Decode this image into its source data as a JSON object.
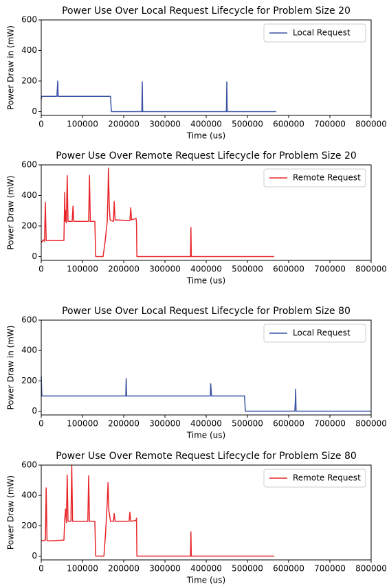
{
  "chart_data": [
    {
      "type": "line",
      "title": "Power Use Over Local Request Lifecycle for Problem Size 20",
      "xlabel": "Time (us)",
      "ylabel": "Power Draw in (mW)",
      "xlim": [
        0,
        800000
      ],
      "xticks": [
        0,
        100000,
        200000,
        300000,
        400000,
        500000,
        600000,
        700000,
        800000
      ],
      "ylim": [
        -25,
        600
      ],
      "yticks": [
        0,
        200,
        400,
        600
      ],
      "grid": false,
      "legend": "upper right",
      "x": [
        0,
        1000,
        2000,
        38000,
        39000,
        40000,
        41000,
        42000,
        168000,
        170000,
        244000,
        245000,
        246000,
        449000,
        450000,
        451000,
        570000
      ],
      "series": [
        {
          "name": "Local Request",
          "color": "#3a53a4",
          "values": [
            80,
            100,
            100,
            100,
            150,
            200,
            100,
            100,
            100,
            0,
            0,
            195,
            0,
            0,
            195,
            0,
            0
          ]
        }
      ]
    },
    {
      "type": "line",
      "title": "Power Use Over Remote Request Lifecycle for Problem Size 20",
      "xlabel": "Time (us)",
      "ylabel": "Power Draw (mW)",
      "xlim": [
        0,
        800000
      ],
      "xticks": [
        0,
        100000,
        200000,
        300000,
        400000,
        500000,
        600000,
        700000,
        800000
      ],
      "ylim": [
        -25,
        600
      ],
      "yticks": [
        0,
        200,
        400,
        600
      ],
      "grid": false,
      "legend": "upper right",
      "x": [
        0,
        5000,
        8000,
        10000,
        12000,
        55000,
        57000,
        58000,
        59000,
        61000,
        63000,
        65000,
        75000,
        77000,
        79000,
        115000,
        117000,
        119000,
        130000,
        132000,
        150000,
        155000,
        160000,
        162000,
        163000,
        165000,
        167000,
        175000,
        177000,
        179000,
        215000,
        217000,
        219000,
        230000,
        231000,
        232000,
        362000,
        363000,
        364000,
        565000
      ],
      "series": [
        {
          "name": "Remote Request",
          "color": "#e8262a",
          "values": [
            90,
            110,
            100,
            355,
            105,
            105,
            420,
            230,
            300,
            220,
            530,
            230,
            230,
            330,
            230,
            230,
            530,
            230,
            230,
            0,
            0,
            100,
            230,
            420,
            580,
            330,
            240,
            230,
            360,
            240,
            235,
            320,
            240,
            250,
            220,
            0,
            0,
            190,
            0,
            0
          ]
        }
      ]
    },
    {
      "type": "line",
      "title": "Power Use Over Local Request Lifecycle for Problem Size 80",
      "xlabel": "Time (us)",
      "ylabel": "Power Draw in (mW)",
      "xlim": [
        0,
        800000
      ],
      "xticks": [
        0,
        100000,
        200000,
        300000,
        400000,
        500000,
        600000,
        700000,
        800000
      ],
      "ylim": [
        -25,
        600
      ],
      "yticks": [
        0,
        200,
        400,
        600
      ],
      "grid": false,
      "legend": "upper right",
      "x": [
        0,
        1500,
        3000,
        205000,
        206000,
        207000,
        410000,
        411000,
        413000,
        493000,
        495000,
        615000,
        616000,
        617000,
        618000,
        800000
      ],
      "series": [
        {
          "name": "Local Request",
          "color": "#3a53a4",
          "values": [
            230,
            100,
            100,
            100,
            215,
            100,
            100,
            180,
            100,
            100,
            0,
            0,
            60,
            145,
            0,
            0
          ]
        }
      ]
    },
    {
      "type": "line",
      "title": "Power Use Over Remote Request Lifecycle for Problem Size 80",
      "xlabel": "Time (us)",
      "ylabel": "Power Draw (mW)",
      "xlim": [
        0,
        800000
      ],
      "xticks": [
        0,
        100000,
        200000,
        300000,
        400000,
        500000,
        600000,
        700000,
        800000
      ],
      "ylim": [
        -25,
        600
      ],
      "yticks": [
        0,
        200,
        400,
        600
      ],
      "grid": false,
      "legend": "upper right",
      "x": [
        0,
        10000,
        12000,
        14000,
        17000,
        55000,
        57000,
        59000,
        61000,
        63000,
        65000,
        72000,
        74000,
        76000,
        113000,
        115000,
        117000,
        130000,
        132000,
        152000,
        156000,
        160000,
        162000,
        164000,
        168000,
        175000,
        177000,
        179000,
        213000,
        215000,
        217000,
        230000,
        231000,
        232000,
        362000,
        363000,
        364000,
        565000
      ],
      "series": [
        {
          "name": "Remote Request",
          "color": "#e8262a",
          "values": [
            100,
            105,
            450,
            105,
            100,
            105,
            240,
            310,
            220,
            535,
            230,
            230,
            600,
            230,
            230,
            530,
            230,
            230,
            0,
            0,
            150,
            350,
            485,
            300,
            230,
            230,
            280,
            230,
            230,
            290,
            230,
            235,
            250,
            0,
            0,
            160,
            0,
            0
          ]
        }
      ]
    }
  ]
}
